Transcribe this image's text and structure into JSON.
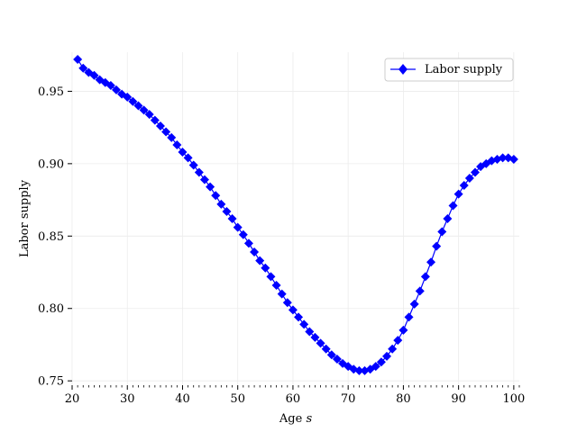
{
  "chart_data": {
    "type": "line",
    "title": "",
    "xlabel_main": "Age ",
    "xlabel_var": "s",
    "ylabel": "Labor supply",
    "xlim": [
      20,
      101
    ],
    "ylim": [
      0.747,
      0.977
    ],
    "xticks": [
      20,
      30,
      40,
      50,
      60,
      70,
      80,
      90,
      100
    ],
    "xtick_labels": [
      "20",
      "30",
      "40",
      "50",
      "60",
      "70",
      "80",
      "90",
      "100"
    ],
    "yticks": [
      0.75,
      0.8,
      0.85,
      0.9,
      0.95
    ],
    "ytick_labels": [
      "0.75",
      "0.80",
      "0.85",
      "0.90",
      "0.95"
    ],
    "grid": true,
    "legend_position": "top-right",
    "series": [
      {
        "name": "Labor supply",
        "color": "#0000ff",
        "marker": "diamond",
        "x": [
          21,
          22,
          23,
          24,
          25,
          26,
          27,
          28,
          29,
          30,
          31,
          32,
          33,
          34,
          35,
          36,
          37,
          38,
          39,
          40,
          41,
          42,
          43,
          44,
          45,
          46,
          47,
          48,
          49,
          50,
          51,
          52,
          53,
          54,
          55,
          56,
          57,
          58,
          59,
          60,
          61,
          62,
          63,
          64,
          65,
          66,
          67,
          68,
          69,
          70,
          71,
          72,
          73,
          74,
          75,
          76,
          77,
          78,
          79,
          80,
          81,
          82,
          83,
          84,
          85,
          86,
          87,
          88,
          89,
          90,
          91,
          92,
          93,
          94,
          95,
          96,
          97,
          98,
          99,
          100
        ],
        "y": [
          0.972,
          0.966,
          0.963,
          0.961,
          0.958,
          0.956,
          0.954,
          0.951,
          0.948,
          0.946,
          0.943,
          0.94,
          0.937,
          0.934,
          0.93,
          0.926,
          0.922,
          0.918,
          0.913,
          0.908,
          0.904,
          0.899,
          0.894,
          0.889,
          0.884,
          0.878,
          0.872,
          0.867,
          0.862,
          0.856,
          0.851,
          0.845,
          0.839,
          0.833,
          0.828,
          0.822,
          0.816,
          0.81,
          0.804,
          0.799,
          0.794,
          0.789,
          0.784,
          0.78,
          0.776,
          0.772,
          0.768,
          0.765,
          0.762,
          0.76,
          0.758,
          0.757,
          0.757,
          0.758,
          0.76,
          0.763,
          0.767,
          0.772,
          0.778,
          0.785,
          0.794,
          0.803,
          0.812,
          0.822,
          0.832,
          0.843,
          0.853,
          0.862,
          0.871,
          0.879,
          0.885,
          0.89,
          0.894,
          0.898,
          0.9,
          0.902,
          0.903,
          0.904,
          0.904,
          0.903
        ]
      }
    ]
  }
}
